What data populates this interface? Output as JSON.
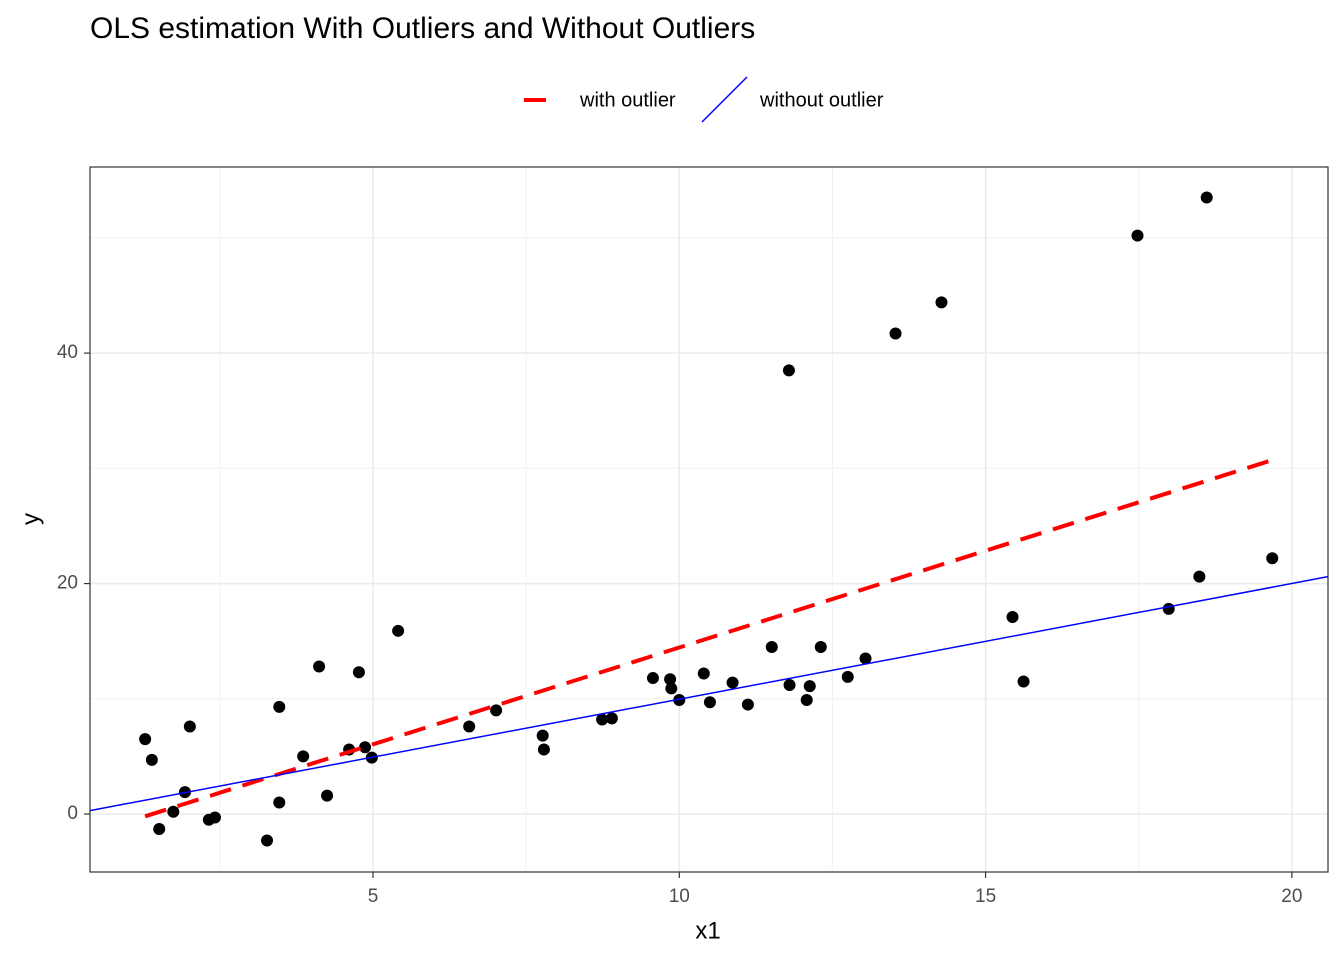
{
  "chart_data": {
    "type": "scatter",
    "title": "OLS estimation With Outliers and Without Outliers",
    "xlabel": "x1",
    "ylabel": "y",
    "xlim": [
      0.38,
      20.59
    ],
    "ylim": [
      -5.03,
      56.15
    ],
    "xticks": [
      5,
      10,
      15,
      20
    ],
    "yticks": [
      0,
      20,
      40
    ],
    "xgrid_minor": [
      2.5,
      7.5,
      12.5,
      17.5
    ],
    "ygrid_minor": [
      10,
      30,
      50
    ],
    "grid": true,
    "points": {
      "color": "#000000",
      "x": [
        1.28,
        1.39,
        1.51,
        1.74,
        1.93,
        2.01,
        2.32,
        2.42,
        3.27,
        3.47,
        3.47,
        3.86,
        4.12,
        4.25,
        4.61,
        4.77,
        4.87,
        4.98,
        5.41,
        6.57,
        7.01,
        7.77,
        7.79,
        8.74,
        8.9,
        9.57,
        9.85,
        9.87,
        10.0,
        10.4,
        10.5,
        10.87,
        11.12,
        11.51,
        11.79,
        11.8,
        12.08,
        12.13,
        12.31,
        12.75,
        13.04,
        13.53,
        14.28,
        15.44,
        15.62,
        17.48,
        17.99,
        18.49,
        18.61,
        19.68
      ],
      "values": [
        6.5,
        4.7,
        -1.3,
        0.2,
        1.9,
        7.6,
        -0.5,
        -0.3,
        -2.3,
        9.3,
        1.0,
        5.0,
        12.8,
        1.6,
        5.6,
        12.3,
        5.8,
        4.9,
        15.9,
        7.6,
        9.0,
        6.8,
        5.6,
        8.2,
        8.3,
        11.8,
        11.7,
        10.9,
        9.9,
        12.2,
        9.7,
        11.4,
        9.5,
        14.5,
        38.5,
        11.2,
        9.9,
        11.1,
        14.5,
        11.9,
        13.5,
        41.7,
        44.4,
        17.1,
        11.5,
        50.2,
        17.8,
        20.6,
        53.5,
        22.2
      ]
    },
    "series": [
      {
        "name": "with outlier",
        "color": "#ff0000",
        "dashed": true,
        "x": [
          1.28,
          19.67
        ],
        "values": [
          -0.2,
          30.7
        ]
      },
      {
        "name": "without outlier",
        "color": "#0000ff",
        "dashed": false,
        "x": [
          0.38,
          20.59
        ],
        "values": [
          0.3,
          20.6
        ]
      }
    ]
  }
}
